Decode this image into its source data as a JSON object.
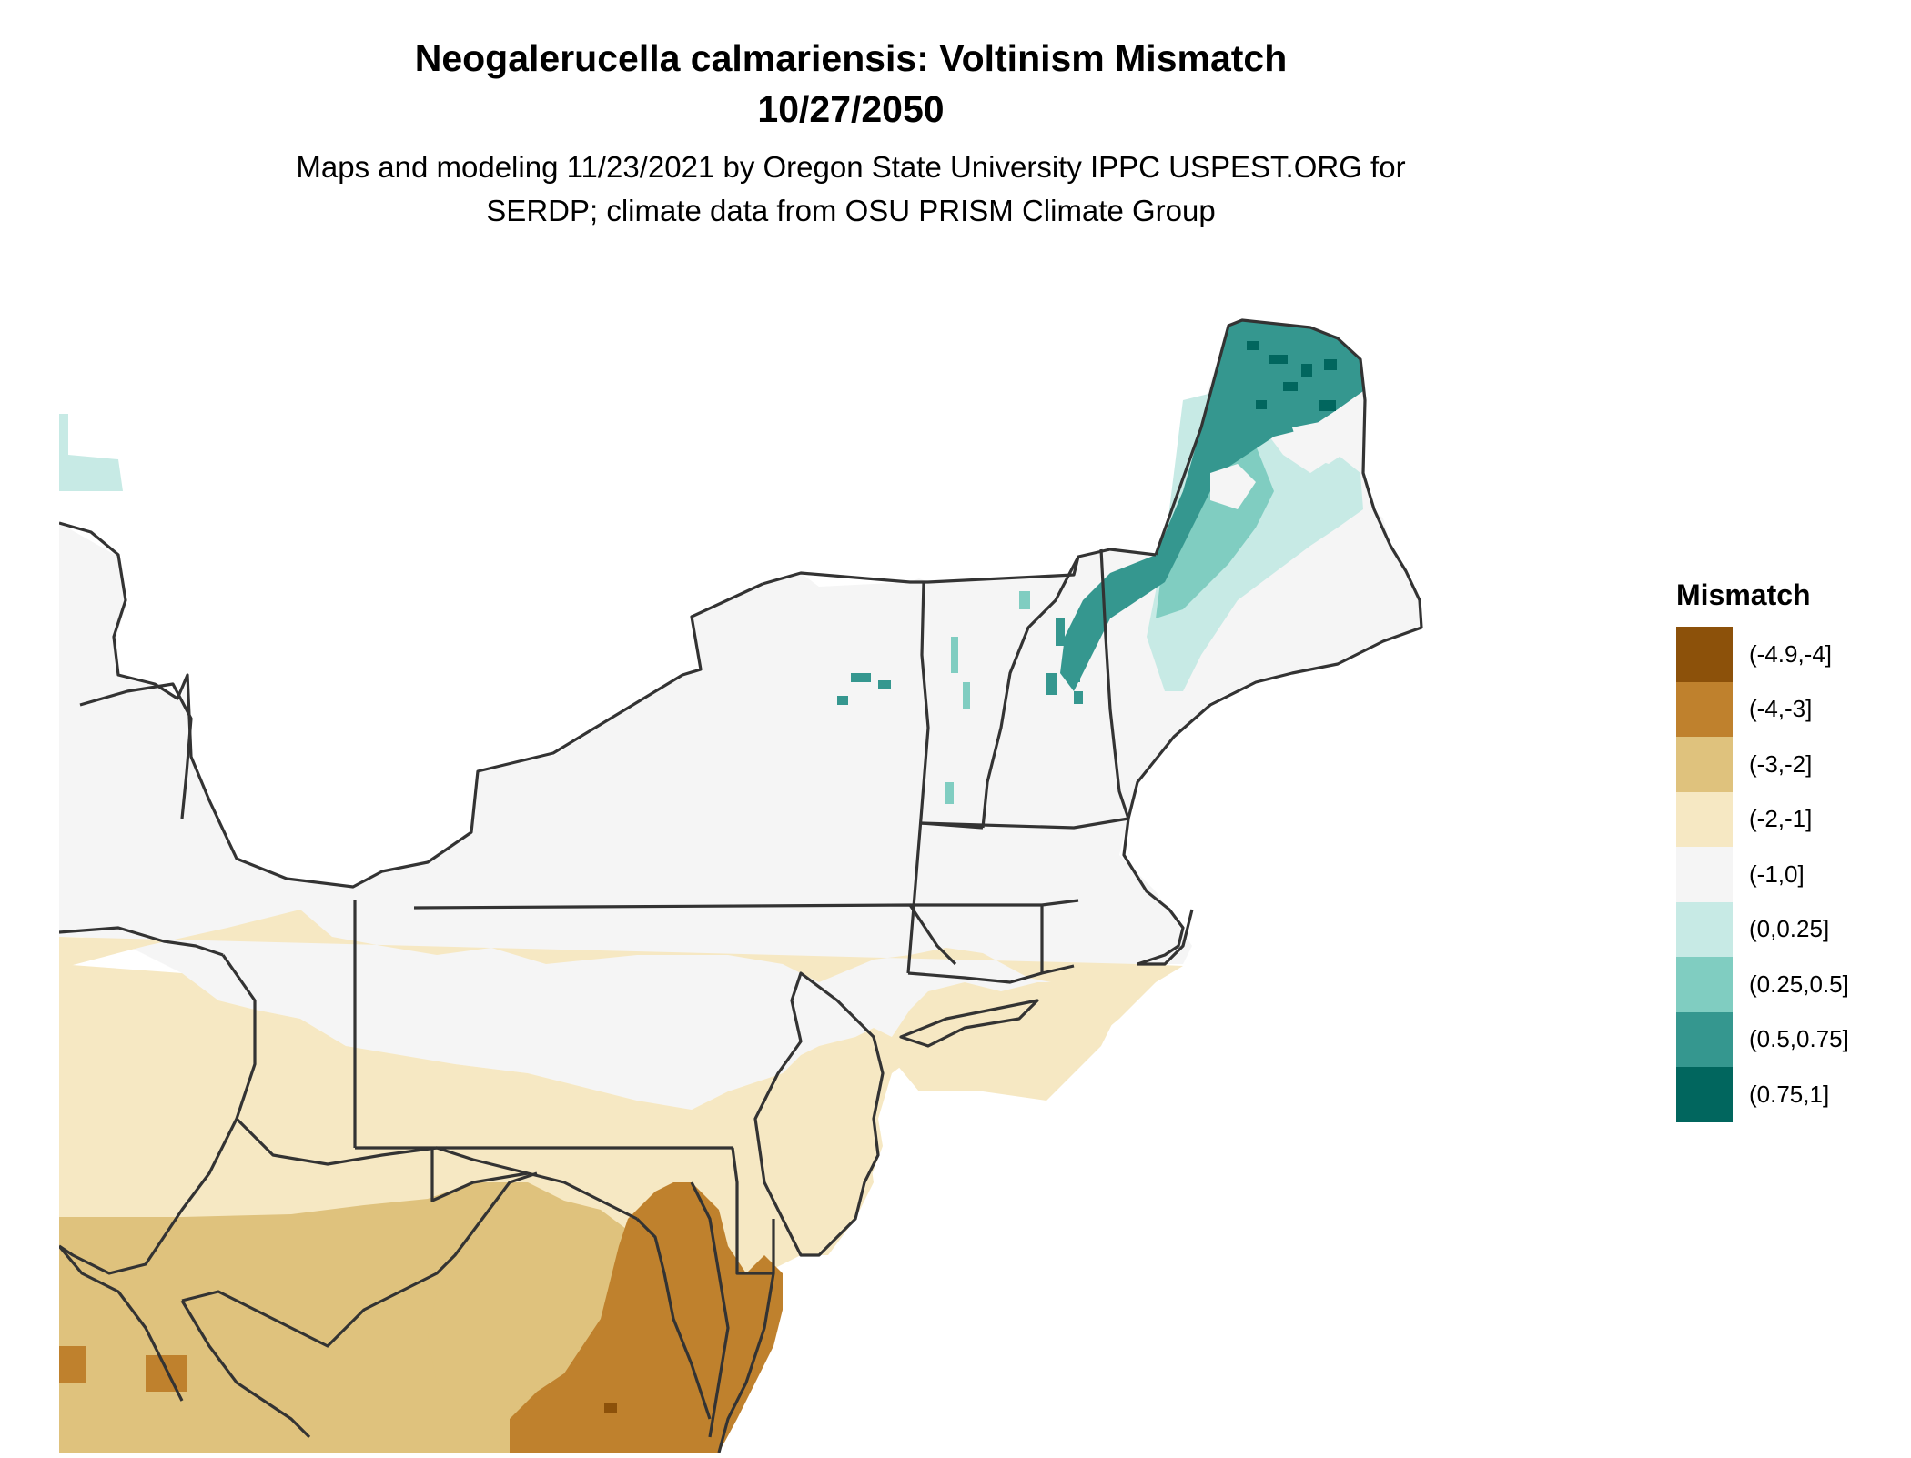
{
  "header": {
    "title_line1": "Neogalerucella calmariensis: Voltinism Mismatch",
    "title_line2": "10/27/2050",
    "subtitle_line1": "Maps and modeling 11/23/2021 by Oregon State University IPPC USPEST.ORG for",
    "subtitle_line2": "SERDP; climate data from OSU PRISM Climate Group"
  },
  "legend": {
    "title": "Mismatch",
    "items": [
      {
        "label": "(-4.9,-4]",
        "color": "#8c510a"
      },
      {
        "label": "(-4,-3]",
        "color": "#bf812d"
      },
      {
        "label": "(-3,-2]",
        "color": "#dfc27d"
      },
      {
        "label": "(-2,-1]",
        "color": "#f6e8c3"
      },
      {
        "label": "(-1,0]",
        "color": "#f5f5f5"
      },
      {
        "label": "(0,0.25]",
        "color": "#c7eae5"
      },
      {
        "label": "(0.25,0.5]",
        "color": "#80cdc1"
      },
      {
        "label": "(0.5,0.75]",
        "color": "#35978f"
      },
      {
        "label": "(0.75,1]",
        "color": "#01665e"
      }
    ]
  },
  "map": {
    "boundary_color": "#333333"
  }
}
